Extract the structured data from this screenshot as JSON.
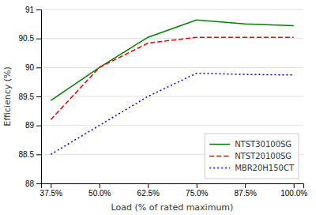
{
  "chart_data": {
    "type": "line",
    "xlabel": "Load (% of rated maximum)",
    "ylabel": "Efficiency (%)",
    "x": [
      37.5,
      50.0,
      62.5,
      75.0,
      87.5,
      100.0
    ],
    "series": [
      {
        "name": "NTST30100SG",
        "color": "#008000",
        "line_style": "solid",
        "values": [
          89.43,
          90.0,
          90.52,
          90.82,
          90.75,
          90.72
        ]
      },
      {
        "name": "NTST20100SG",
        "color": "#ee0000",
        "line_style": "dashed",
        "values": [
          89.1,
          90.0,
          90.42,
          90.52,
          90.52,
          90.52
        ]
      },
      {
        "name": "MBR20H150CT",
        "color": "#0000ee",
        "line_style": "dotted",
        "values": [
          88.5,
          89.0,
          89.5,
          89.9,
          89.88,
          89.87
        ]
      }
    ],
    "xlim": [
      35.0,
      102.5
    ],
    "xticks": [
      {
        "value": 37.5,
        "label": "37.5%"
      },
      {
        "value": 50.0,
        "label": "50.0%"
      },
      {
        "value": 62.5,
        "label": "62.5%"
      },
      {
        "value": 75.0,
        "label": "75.0%"
      },
      {
        "value": 87.5,
        "label": "87.5%"
      },
      {
        "value": 100.0,
        "label": "100.0%"
      }
    ],
    "ylim": [
      88.0,
      91.0
    ],
    "yticks": [
      88.0,
      88.5,
      89.0,
      89.5,
      90.0,
      90.5,
      91.0
    ],
    "grid": "y",
    "legend": "lower right"
  }
}
